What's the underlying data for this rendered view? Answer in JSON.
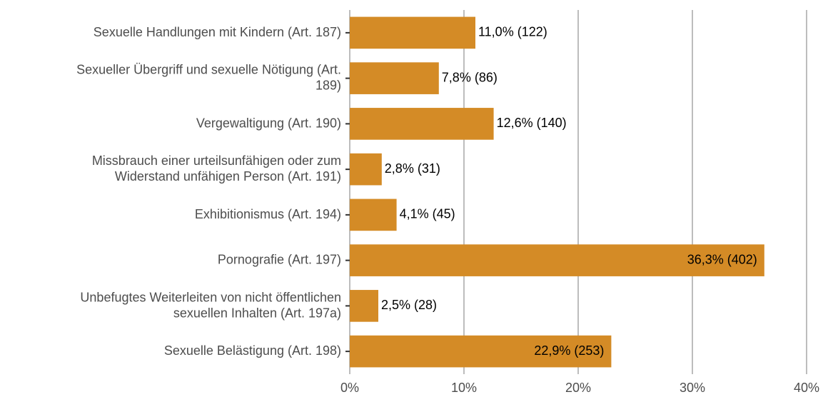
{
  "chart_data": {
    "type": "bar",
    "orientation": "horizontal",
    "categories": [
      "Sexuelle Handlungen mit Kindern (Art. 187)",
      "Sexueller Übergriff und sexuelle Nötigung (Art.\n189)",
      "Vergewaltigung (Art. 190)",
      "Missbrauch einer urteilsunfähigen oder zum\nWiderstand unfähigen Person (Art. 191)",
      "Exhibitionismus (Art. 194)",
      "Pornografie (Art. 197)",
      "Unbefugtes Weiterleiten von nicht öffentlichen\nsexuellen Inhalten (Art. 197a)",
      "Sexuelle Belästigung (Art. 198)"
    ],
    "values": [
      11.0,
      7.8,
      12.6,
      2.8,
      4.1,
      36.3,
      2.5,
      22.9
    ],
    "value_labels": [
      "11,0% (122)",
      "7,8% (86)",
      "12,6% (140)",
      "2,8% (31)",
      "4,1% (45)",
      "36,3% (402)",
      "2,5% (28)",
      "22,9% (253)"
    ],
    "color": "#d48b26",
    "xlim": [
      0,
      40
    ],
    "xticks": [
      {
        "value": 0,
        "label": "0%"
      },
      {
        "value": 10,
        "label": "10%"
      },
      {
        "value": 20,
        "label": "20%"
      },
      {
        "value": 30,
        "label": "30%"
      },
      {
        "value": 40,
        "label": "40%"
      }
    ],
    "grid": true
  }
}
